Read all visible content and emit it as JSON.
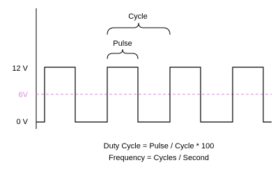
{
  "labels": {
    "cycle": "Cycle",
    "pulse": "Pulse",
    "high": "12 V",
    "mid": "6V",
    "low": "0 V"
  },
  "formulas": [
    "Duty Cycle = Pulse / Cycle * 100",
    "Frequency = Cycles / Second"
  ]
}
